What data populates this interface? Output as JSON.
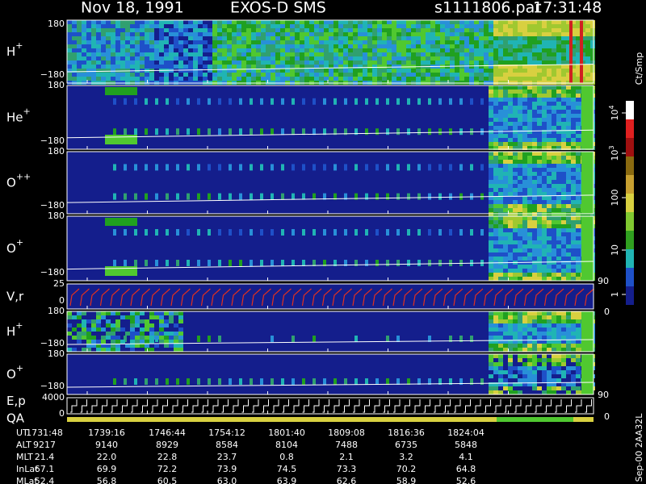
{
  "header": {
    "date": "Nov 18, 1991",
    "instrument": "EXOS-D SMS",
    "file": "s1111806.par",
    "time": "17:31:48"
  },
  "panels": [
    {
      "label": "H",
      "sup": "+",
      "top": "180",
      "bottom": "−180"
    },
    {
      "label": "He",
      "sup": "+",
      "top": "180",
      "bottom": "−180"
    },
    {
      "label": "O",
      "sup": "++",
      "top": "180",
      "bottom": "−180"
    },
    {
      "label": "O",
      "sup": "+",
      "top": "180",
      "bottom": "−180"
    },
    {
      "label": "V,r",
      "top": "25",
      "bottom": "0",
      "right_top": "90",
      "right_bottom": "0"
    },
    {
      "label": "H",
      "sup": "+",
      "top": "180",
      "bottom": "−180"
    },
    {
      "label": "O",
      "sup": "+",
      "top": "180",
      "bottom": "−180"
    },
    {
      "label": "E,p",
      "label2": "QA",
      "top": "4000",
      "bottom": "0",
      "right_top": "90",
      "right_bottom": "0"
    }
  ],
  "colorbar": {
    "title": "Ct/Smp",
    "ticks": [
      {
        "base": "10",
        "exp": "4"
      },
      {
        "base": "10",
        "exp": "3"
      },
      "100",
      "10",
      "1"
    ]
  },
  "ephemeris": {
    "rows": [
      {
        "label": "UT",
        "values": [
          "1731:48",
          "1739:16",
          "1746:44",
          "1754:12",
          "1801:40",
          "1809:08",
          "1816:36",
          "1824:04"
        ]
      },
      {
        "label": "ALT",
        "values": [
          "9217",
          "9140",
          "8929",
          "8584",
          "8104",
          "7488",
          "6735",
          "5848"
        ]
      },
      {
        "label": "MLT",
        "values": [
          "21.4",
          "22.0",
          "22.8",
          "23.7",
          "0.8",
          "2.1",
          "3.2",
          "4.1"
        ]
      },
      {
        "label": "InLat",
        "values": [
          "67.1",
          "69.9",
          "72.2",
          "73.9",
          "74.5",
          "73.3",
          "70.2",
          "64.8"
        ]
      },
      {
        "label": "MLat",
        "values": [
          "52.4",
          "56.8",
          "60.5",
          "63.0",
          "63.9",
          "62.6",
          "58.9",
          "52.6"
        ]
      }
    ]
  },
  "footer": "Sep-00 2AA32L"
}
